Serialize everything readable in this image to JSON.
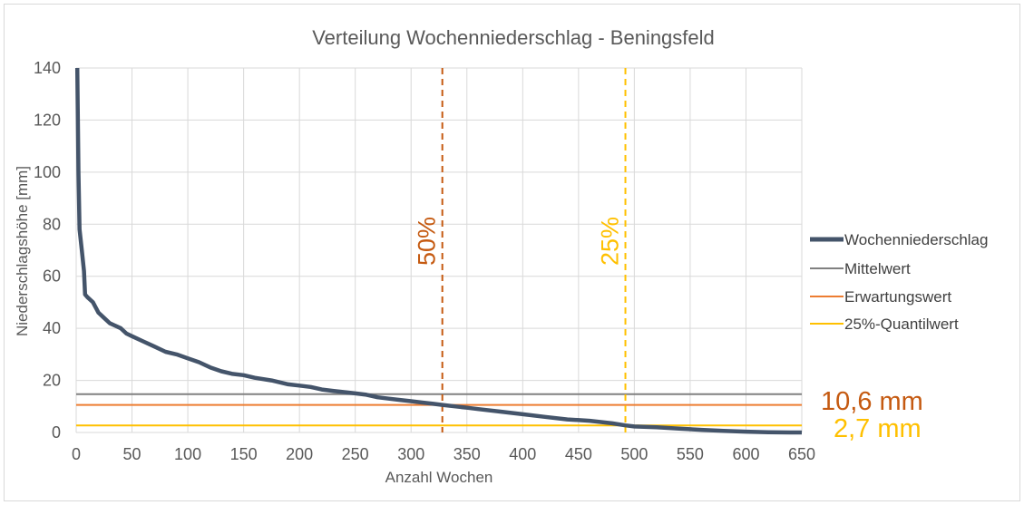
{
  "chart_data": {
    "type": "line",
    "title": "Verteilung Wochenniederschlag - Beningsfeld",
    "xlabel": "Anzahl Wochen",
    "ylabel": "Niederschlagshöhe [mm]",
    "xlim": [
      0,
      650
    ],
    "ylim": [
      0,
      140
    ],
    "xticks": [
      "0",
      "50",
      "100",
      "150",
      "200",
      "250",
      "300",
      "350",
      "400",
      "450",
      "500",
      "550",
      "600",
      "650"
    ],
    "yticks": [
      "0",
      "20",
      "40",
      "60",
      "80",
      "100",
      "120",
      "140"
    ],
    "grid": true,
    "legend_position": "right",
    "series": [
      {
        "name": "Wochenniederschlag",
        "color": "#44546a",
        "x": [
          1,
          2,
          3,
          5,
          7,
          8,
          10,
          15,
          20,
          25,
          30,
          40,
          45,
          50,
          60,
          70,
          80,
          90,
          100,
          110,
          120,
          130,
          140,
          150,
          160,
          175,
          190,
          200,
          210,
          220,
          230,
          240,
          250,
          260,
          270,
          280,
          290,
          300,
          310,
          320,
          328,
          340,
          350,
          360,
          380,
          400,
          420,
          440,
          460,
          480,
          492,
          500,
          520,
          540,
          560,
          580,
          600,
          620,
          640,
          655
        ],
        "y": [
          140,
          100,
          78,
          70,
          62,
          53,
          52,
          50,
          46,
          44,
          42,
          40,
          38,
          37,
          35,
          33,
          31,
          30,
          28.5,
          27,
          25,
          23.5,
          22.5,
          22,
          21,
          20,
          18.5,
          18,
          17.5,
          16.5,
          16,
          15.5,
          15,
          14.5,
          13.5,
          13,
          12.5,
          12,
          11.5,
          11,
          10.6,
          10,
          9.5,
          9,
          8,
          7,
          6,
          5,
          4.5,
          3.5,
          2.7,
          2.3,
          2,
          1.5,
          1,
          0.6,
          0.3,
          0.1,
          0,
          0
        ]
      },
      {
        "name": "Mittelwert",
        "color": "#808080",
        "y": 14.7
      },
      {
        "name": "Erwartungswert",
        "color": "#ed7d31",
        "y": 10.6
      },
      {
        "name": "25%-Quantilwert",
        "color": "#ffc000",
        "y": 2.7
      }
    ],
    "markers": [
      {
        "label": "50%",
        "x": 328,
        "color": "#c55a11"
      },
      {
        "label": "25%",
        "x": 492,
        "color": "#ffc000"
      }
    ],
    "annotations": [
      {
        "text": "10,6 mm",
        "color": "#c55a11"
      },
      {
        "text": "2,7 mm",
        "color": "#ffc000"
      }
    ]
  }
}
